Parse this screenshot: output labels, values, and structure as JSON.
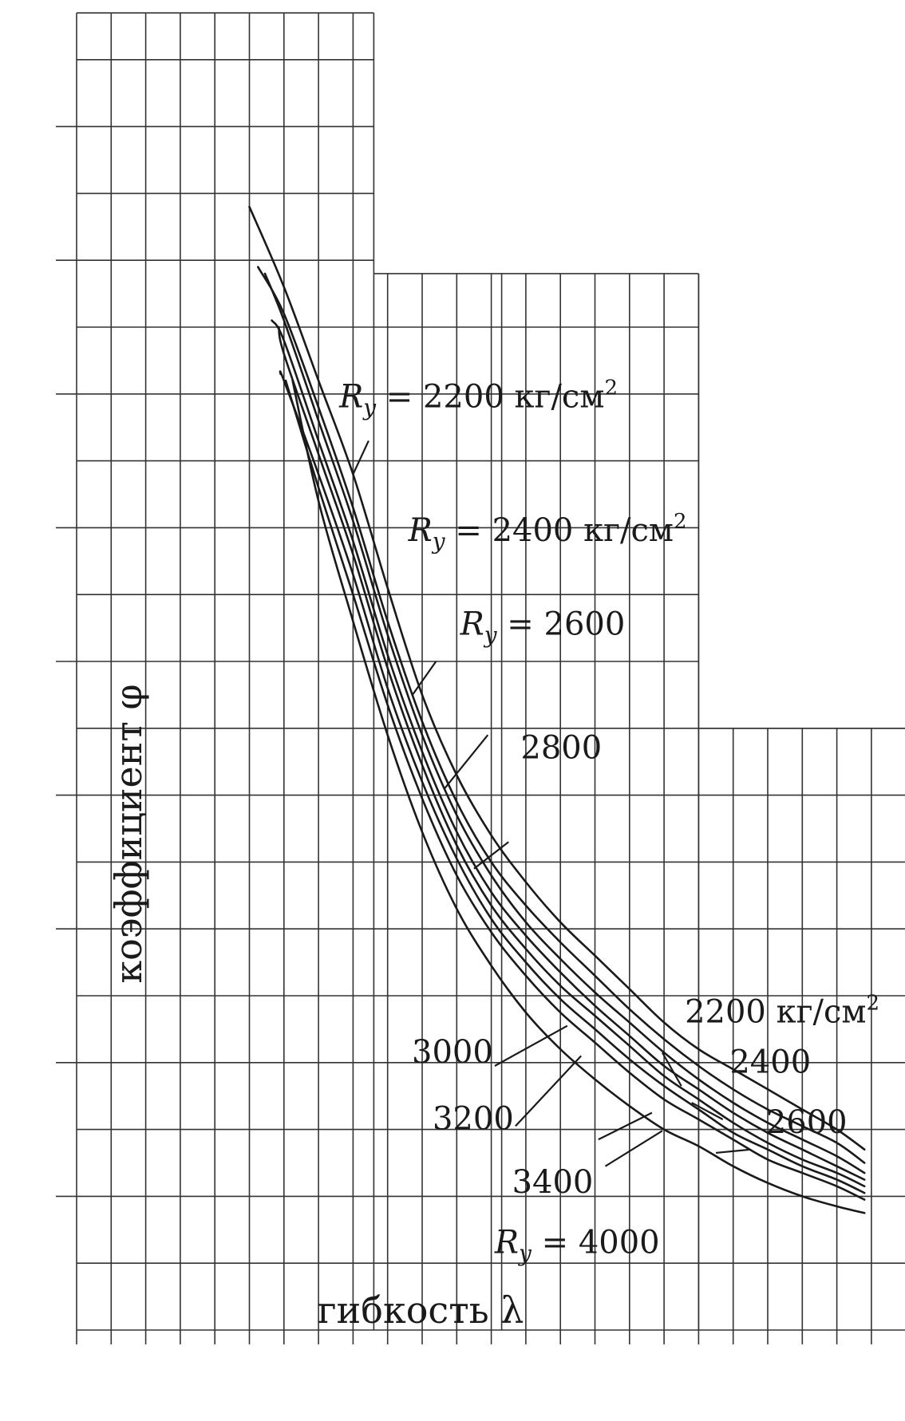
{
  "chart_data": {
    "type": "line",
    "xlabel": "гибкость λ",
    "ylabel": "коэффициент φ",
    "grid": true,
    "line_color": "#1a1a1a",
    "grid_color": "#333333",
    "series": [
      {
        "name": "2200",
        "points": [
          [
            5.0,
            16.8
          ],
          [
            6.0,
            15.6
          ],
          [
            7.0,
            14.2
          ],
          [
            8.0,
            12.8
          ],
          [
            9.0,
            11.1
          ],
          [
            10.0,
            9.5
          ],
          [
            11.0,
            8.3
          ],
          [
            12.0,
            7.4
          ],
          [
            13.0,
            6.7
          ],
          [
            14.0,
            6.1
          ],
          [
            15.0,
            5.6
          ],
          [
            16.0,
            5.1
          ],
          [
            17.0,
            4.6
          ],
          [
            18.0,
            4.2
          ],
          [
            19.0,
            3.9
          ],
          [
            20.0,
            3.6
          ],
          [
            21.0,
            3.3
          ],
          [
            22.0,
            3.0
          ],
          [
            22.8,
            2.7
          ]
        ]
      },
      {
        "name": "2400",
        "points": [
          [
            5.25,
            15.9
          ],
          [
            6.0,
            15.2
          ],
          [
            7.0,
            13.8
          ],
          [
            8.0,
            12.3
          ],
          [
            9.0,
            10.6
          ],
          [
            10.0,
            9.1
          ],
          [
            11.0,
            7.9
          ],
          [
            12.0,
            7.0
          ],
          [
            13.0,
            6.35
          ],
          [
            14.0,
            5.8
          ],
          [
            15.0,
            5.3
          ],
          [
            16.0,
            4.8
          ],
          [
            17.0,
            4.35
          ],
          [
            18.0,
            3.95
          ],
          [
            19.0,
            3.6
          ],
          [
            20.0,
            3.3
          ],
          [
            21.0,
            3.05
          ],
          [
            22.0,
            2.8
          ],
          [
            22.8,
            2.5
          ]
        ]
      },
      {
        "name": "2600",
        "points": [
          [
            5.45,
            15.8
          ],
          [
            6.0,
            15.1
          ],
          [
            7.0,
            13.6
          ],
          [
            8.0,
            12.1
          ],
          [
            9.0,
            10.4
          ],
          [
            10.0,
            8.9
          ],
          [
            11.0,
            7.7
          ],
          [
            12.0,
            6.8
          ],
          [
            13.0,
            6.1
          ],
          [
            14.0,
            5.55
          ],
          [
            15.0,
            5.05
          ],
          [
            16.0,
            4.6
          ],
          [
            17.0,
            4.15
          ],
          [
            18.0,
            3.75
          ],
          [
            19.0,
            3.4
          ],
          [
            20.0,
            3.1
          ],
          [
            21.0,
            2.85
          ],
          [
            22.0,
            2.6
          ],
          [
            22.8,
            2.35
          ]
        ]
      },
      {
        "name": "2800",
        "points": [
          [
            5.65,
            15.1
          ],
          [
            6.0,
            14.8
          ],
          [
            7.0,
            13.3
          ],
          [
            8.0,
            11.8
          ],
          [
            9.0,
            10.1
          ],
          [
            10.0,
            8.65
          ],
          [
            11.0,
            7.45
          ],
          [
            12.0,
            6.55
          ],
          [
            13.0,
            5.9
          ],
          [
            14.0,
            5.35
          ],
          [
            15.0,
            4.85
          ],
          [
            16.0,
            4.4
          ],
          [
            17.0,
            3.95
          ],
          [
            18.0,
            3.6
          ],
          [
            19.0,
            3.25
          ],
          [
            20.0,
            2.95
          ],
          [
            21.0,
            2.7
          ],
          [
            22.0,
            2.45
          ],
          [
            22.8,
            2.25
          ]
        ]
      },
      {
        "name": "3000",
        "points": [
          [
            5.85,
            15.0
          ],
          [
            6.0,
            14.6
          ],
          [
            7.0,
            13.1
          ],
          [
            8.0,
            11.6
          ],
          [
            9.0,
            9.9
          ],
          [
            10.0,
            8.45
          ],
          [
            11.0,
            7.25
          ],
          [
            12.0,
            6.35
          ],
          [
            13.0,
            5.7
          ],
          [
            14.0,
            5.15
          ],
          [
            15.0,
            4.7
          ],
          [
            16.0,
            4.25
          ],
          [
            17.0,
            3.8
          ],
          [
            18.0,
            3.45
          ],
          [
            19.0,
            3.1
          ],
          [
            20.0,
            2.8
          ],
          [
            21.0,
            2.55
          ],
          [
            22.0,
            2.35
          ],
          [
            22.8,
            2.15
          ]
        ]
      },
      {
        "name": "3200",
        "points": [
          [
            5.9,
            14.3
          ],
          [
            6.0,
            14.2
          ],
          [
            7.0,
            12.8
          ],
          [
            8.0,
            11.3
          ],
          [
            9.0,
            9.6
          ],
          [
            10.0,
            8.2
          ],
          [
            11.0,
            7.05
          ],
          [
            12.0,
            6.15
          ],
          [
            13.0,
            5.5
          ],
          [
            14.0,
            4.95
          ],
          [
            15.0,
            4.5
          ],
          [
            16.0,
            4.05
          ],
          [
            17.0,
            3.65
          ],
          [
            18.0,
            3.3
          ],
          [
            19.0,
            2.95
          ],
          [
            20.0,
            2.7
          ],
          [
            21.0,
            2.45
          ],
          [
            22.0,
            2.25
          ],
          [
            22.8,
            2.05
          ]
        ]
      },
      {
        "name": "3400",
        "points": [
          [
            6.05,
            14.2
          ],
          [
            7.0,
            12.6
          ],
          [
            8.0,
            11.0
          ],
          [
            9.0,
            9.35
          ],
          [
            10.0,
            7.95
          ],
          [
            11.0,
            6.8
          ],
          [
            12.0,
            5.95
          ],
          [
            13.0,
            5.3
          ],
          [
            14.0,
            4.75
          ],
          [
            15.0,
            4.3
          ],
          [
            16.0,
            3.85
          ],
          [
            17.0,
            3.45
          ],
          [
            18.0,
            3.15
          ],
          [
            19.0,
            2.85
          ],
          [
            20.0,
            2.55
          ],
          [
            21.0,
            2.35
          ],
          [
            22.0,
            2.15
          ],
          [
            22.8,
            1.95
          ]
        ]
      },
      {
        "name": "4000",
        "points": [
          [
            6.25,
            14.2
          ],
          [
            7.0,
            12.4
          ],
          [
            8.0,
            10.6
          ],
          [
            9.0,
            8.9
          ],
          [
            10.0,
            7.45
          ],
          [
            11.0,
            6.3
          ],
          [
            12.0,
            5.45
          ],
          [
            13.0,
            4.75
          ],
          [
            14.0,
            4.2
          ],
          [
            15.0,
            3.75
          ],
          [
            16.0,
            3.35
          ],
          [
            17.0,
            3.0
          ],
          [
            18.0,
            2.75
          ],
          [
            19.0,
            2.45
          ],
          [
            20.0,
            2.2
          ],
          [
            21.0,
            2.0
          ],
          [
            22.0,
            1.85
          ],
          [
            22.8,
            1.75
          ]
        ]
      }
    ],
    "annotations": [
      {
        "prefix": "R",
        "sub": "y",
        "eq": " = ",
        "value": "2200",
        "unit": " кг/см",
        "sup": "2",
        "point": [
          8.0,
          12.8
        ],
        "text_at": [
          7.6,
          13.8
        ],
        "leader_to": [
          8.45,
          13.3
        ]
      },
      {
        "prefix": "R",
        "sub": "y",
        "eq": " = ",
        "value": "2400",
        "unit": " кг/см",
        "sup": "2",
        "point": [
          9.72,
          9.5
        ],
        "text_at": [
          9.6,
          11.8
        ],
        "leader_to": [
          10.4,
          10.0
        ]
      },
      {
        "prefix": "R",
        "sub": "y",
        "eq": " = ",
        "value": "2600",
        "unit": "",
        "sup": "",
        "point": [
          10.65,
          8.1
        ],
        "text_at": [
          11.1,
          10.4
        ],
        "leader_to": [
          11.9,
          8.9
        ]
      },
      {
        "prefix": "",
        "sub": "",
        "eq": "",
        "value": "2800",
        "unit": "",
        "sup": "",
        "point": [
          11.5,
          6.9
        ],
        "text_at": [
          12.85,
          8.55
        ],
        "leader_to": [
          12.5,
          7.3
        ]
      },
      {
        "prefix": "",
        "sub": "",
        "eq": "",
        "value": "3000",
        "unit": "",
        "sup": "",
        "point": [
          14.2,
          4.55
        ],
        "text_at": [
          9.7,
          4.0
        ],
        "leader_to": [
          12.1,
          3.95
        ]
      },
      {
        "prefix": "",
        "sub": "",
        "eq": "",
        "value": "3200",
        "unit": "",
        "sup": "",
        "point": [
          14.6,
          4.1
        ],
        "text_at": [
          10.3,
          3.0
        ],
        "leader_to": [
          12.7,
          3.05
        ]
      },
      {
        "prefix": "",
        "sub": "",
        "eq": "",
        "value": "3400",
        "unit": "",
        "sup": "",
        "point": [
          16.65,
          3.25
        ],
        "text_at": [
          12.6,
          2.05
        ],
        "leader_to": [
          15.1,
          2.85
        ]
      },
      {
        "prefix": "R",
        "sub": "y",
        "eq": " = ",
        "value": "4000",
        "unit": "",
        "sup": "",
        "point": [
          16.95,
          2.98
        ],
        "text_at": [
          12.1,
          1.15
        ],
        "leader_to": [
          15.3,
          2.45
        ]
      },
      {
        "prefix": "",
        "sub": "",
        "eq": "",
        "value": "2200",
        "unit": " кг/см",
        "sup": "2",
        "point": [
          17.5,
          3.65
        ],
        "text_at": [
          17.6,
          4.6
        ],
        "leader_to": [
          16.95,
          4.15
        ]
      },
      {
        "prefix": "",
        "sub": "",
        "eq": "",
        "value": "2400",
        "unit": "",
        "sup": "",
        "point": [
          18.7,
          3.15
        ],
        "text_at": [
          18.9,
          3.85
        ],
        "leader_to": [
          17.8,
          3.4
        ]
      },
      {
        "prefix": "",
        "sub": "",
        "eq": "",
        "value": "2600",
        "unit": "",
        "sup": "",
        "point": [
          19.5,
          2.7
        ],
        "text_at": [
          19.95,
          2.95
        ],
        "leader_to": [
          18.5,
          2.65
        ]
      }
    ]
  }
}
